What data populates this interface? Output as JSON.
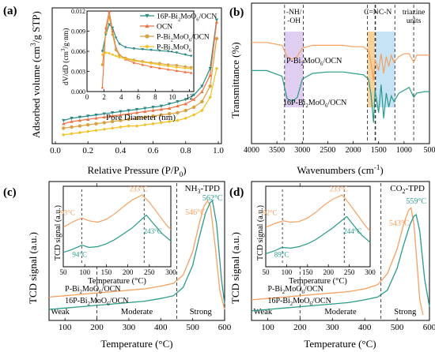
{
  "colors": {
    "series1": "#2a8a82",
    "series2": "#f07040",
    "series3": "#d9a040",
    "series4": "#f2c020",
    "nh_band": "#ddc9f0",
    "cn1_band": "#f5cc90",
    "cn2_band": "#bfe0f4",
    "tpd_orange": "#f5a060",
    "tpd_teal": "#2a9a8a",
    "dash": "#333333"
  },
  "chart_data": [
    {
      "id": "a",
      "type": "line",
      "panel_label": "(a)",
      "xlabel": "Relative Pressure  (P/P",
      "xlabel_sub": "0",
      "xlabel_end": ")",
      "ylabel": "Adsorbed volume (cm",
      "ylabel_sup": "3",
      "ylabel_end": "/g STP)",
      "xlim": [
        0,
        1.0
      ],
      "ylim": [
        0,
        120
      ],
      "xticks": [
        "0.0",
        "0.2",
        "0.4",
        "0.6",
        "0.8",
        "1.0"
      ],
      "series": [
        {
          "name": "16P-Bi2MoO6/OCN",
          "name_parts": [
            "16P-Bi",
            "2",
            "MoO",
            "6",
            "/OCN"
          ],
          "marker": "triangle-down",
          "x": [
            0.05,
            0.1,
            0.15,
            0.2,
            0.25,
            0.3,
            0.35,
            0.4,
            0.45,
            0.5,
            0.55,
            0.6,
            0.65,
            0.7,
            0.75,
            0.8,
            0.85,
            0.9,
            0.95,
            0.99
          ],
          "y": [
            21,
            23,
            24,
            25,
            26,
            27,
            28,
            29,
            30,
            31,
            32,
            33,
            34,
            36,
            38,
            40,
            44,
            52,
            68,
            112
          ]
        },
        {
          "name": "OCN",
          "name_parts": [
            "OCN"
          ],
          "marker": "triangle-up",
          "x": [
            0.05,
            0.1,
            0.15,
            0.2,
            0.25,
            0.3,
            0.35,
            0.4,
            0.45,
            0.5,
            0.55,
            0.6,
            0.65,
            0.7,
            0.75,
            0.8,
            0.85,
            0.9,
            0.95,
            0.99
          ],
          "y": [
            18,
            20,
            21,
            22,
            23,
            24,
            25,
            26,
            27,
            28,
            29,
            30,
            31,
            32,
            34,
            36,
            40,
            47,
            62,
            110
          ]
        },
        {
          "name": "P-Bi2MoO6/OCN",
          "name_parts": [
            "P-Bi",
            "2",
            "MoO",
            "6",
            "/OCN"
          ],
          "marker": "circle",
          "x": [
            0.05,
            0.1,
            0.15,
            0.2,
            0.25,
            0.3,
            0.35,
            0.4,
            0.45,
            0.5,
            0.55,
            0.6,
            0.65,
            0.7,
            0.75,
            0.8,
            0.85,
            0.9,
            0.95,
            0.99
          ],
          "y": [
            14,
            15,
            16,
            17,
            18,
            19,
            20,
            21,
            22,
            23,
            24,
            25,
            26,
            27,
            28,
            30,
            33,
            38,
            52,
            95
          ]
        },
        {
          "name": "P-Bi2MoO6",
          "name_parts": [
            "P-Bi",
            "2",
            "MoO",
            "6"
          ],
          "marker": "diamond",
          "x": [
            0.05,
            0.1,
            0.15,
            0.2,
            0.25,
            0.3,
            0.35,
            0.4,
            0.45,
            0.5,
            0.55,
            0.6,
            0.65,
            0.7,
            0.75,
            0.8,
            0.85,
            0.9,
            0.95,
            0.99
          ],
          "y": [
            8,
            9,
            10,
            11,
            12,
            13,
            14,
            15,
            16,
            16,
            17,
            18,
            19,
            20,
            21,
            23,
            26,
            30,
            42,
            68
          ]
        }
      ],
      "inset": {
        "xlabel": "Pore Diameter (nm)",
        "ylabel": "dV/dD (cm",
        "ylabel_sup": "3",
        "ylabel_end": "/g·nm)",
        "xlim": [
          0,
          12.5
        ],
        "ylim": [
          0,
          0.012
        ],
        "xticks": [
          "0",
          "2",
          "4",
          "6",
          "8",
          "10",
          "12"
        ],
        "yticks": [
          "0.000",
          "0.003",
          "0.006",
          "0.009",
          "0.012"
        ],
        "series": [
          {
            "x": [
              1.8,
              2.2,
              2.6,
              3.0,
              3.4,
              3.8,
              4.5,
              5.5,
              6.5,
              7.5,
              8.5,
              9.5,
              10.5,
              11.5,
              12.2
            ],
            "y": [
              0.006,
              0.0085,
              0.01,
              0.0095,
              0.008,
              0.0071,
              0.0066,
              0.0064,
              0.0063,
              0.0062,
              0.0061,
              0.006,
              0.0058,
              0.0055,
              0.0053
            ]
          },
          {
            "x": [
              1.8,
              2.2,
              2.6,
              3.0,
              3.4,
              3.8,
              4.5,
              5.5,
              6.5,
              7.5,
              8.5,
              9.5,
              10.5,
              11.5,
              12.2
            ],
            "y": [
              0.0006,
              0.0095,
              0.012,
              0.009,
              0.0065,
              0.0055,
              0.0048,
              0.0043,
              0.004,
              0.0037,
              0.0035,
              0.0033,
              0.0031,
              0.0029,
              0.0028
            ]
          },
          {
            "x": [
              1.8,
              2.2,
              2.6,
              3.0,
              3.4,
              3.8,
              4.5,
              5.5,
              6.5,
              7.5,
              8.5,
              9.5,
              10.5,
              11.5,
              12.2
            ],
            "y": [
              0.004,
              0.0088,
              0.0112,
              0.0085,
              0.0062,
              0.0054,
              0.005,
              0.0047,
              0.0045,
              0.0043,
              0.0042,
              0.004,
              0.0039,
              0.0037,
              0.0036
            ]
          },
          {
            "x": [
              1.8,
              2.2,
              2.6,
              3.0,
              3.4,
              3.8,
              4.5,
              5.5,
              6.5,
              7.5,
              8.5,
              9.5,
              10.5,
              11.5,
              12.2
            ],
            "y": [
              0.0055,
              0.0058,
              0.0057,
              0.0055,
              0.0053,
              0.0051,
              0.0049,
              0.0046,
              0.0044,
              0.0042,
              0.004,
              0.0038,
              0.0036,
              0.0035,
              0.0034
            ]
          }
        ]
      }
    },
    {
      "id": "b",
      "type": "line",
      "panel_label": "(b)",
      "xlabel": "Wavenumbers (cm",
      "xlabel_sup": "-1",
      "xlabel_end": ")",
      "ylabel": "Transmittance (%)",
      "xlim": [
        4000,
        500
      ],
      "xticks": [
        "4000",
        "3500",
        "3000",
        "2500",
        "2000",
        "1500",
        "1000",
        "500"
      ],
      "bands": [
        {
          "label_lines": [
            "-NH/",
            "-OH"
          ],
          "from": 3350,
          "to": 2980,
          "color_key": "nh_band"
        },
        {
          "label_lines": [
            "C=N"
          ],
          "from": 1720,
          "to": 1570,
          "color_key": "cn1_band"
        },
        {
          "label_lines": [
            "C-N"
          ],
          "from": 1560,
          "to": 1180,
          "color_key": "cn2_band"
        },
        {
          "label_lines": [
            "triazine",
            "units"
          ],
          "from": 810,
          "to": 810,
          "color_key": "dash"
        }
      ],
      "series": [
        {
          "name": "P-Bi2MoO6/OCN",
          "name_parts": [
            "P-Bi",
            "2",
            "MoO",
            "6",
            "/OCN"
          ],
          "x": [
            4000,
            3700,
            3400,
            3300,
            3200,
            3100,
            3000,
            2800,
            2500,
            2200,
            2000,
            1800,
            1700,
            1650,
            1600,
            1570,
            1500,
            1450,
            1400,
            1350,
            1300,
            1250,
            1200,
            1100,
            1000,
            900,
            810,
            750,
            600,
            500
          ],
          "y": [
            72,
            72,
            70,
            62,
            60,
            62,
            68,
            70,
            70,
            70,
            69,
            69,
            66,
            58,
            45,
            60,
            52,
            64,
            50,
            62,
            55,
            63,
            58,
            62,
            64,
            64,
            58,
            63,
            63,
            63
          ]
        },
        {
          "name": "16P-Bi2MoO6/OCN",
          "name_parts": [
            "16P-Bi",
            "2",
            "MoO",
            "6",
            "/OCN"
          ],
          "x": [
            4000,
            3700,
            3400,
            3300,
            3200,
            3100,
            3000,
            2800,
            2500,
            2200,
            2000,
            1800,
            1700,
            1650,
            1600,
            1570,
            1500,
            1450,
            1400,
            1350,
            1300,
            1250,
            1200,
            1100,
            1000,
            900,
            810,
            750,
            600,
            500
          ],
          "y": [
            52,
            52,
            48,
            32,
            30,
            33,
            46,
            50,
            51,
            51,
            50,
            49,
            46,
            35,
            15,
            38,
            22,
            42,
            18,
            36,
            26,
            34,
            30,
            36,
            38,
            40,
            33,
            36,
            37,
            37
          ]
        }
      ]
    },
    {
      "id": "c",
      "type": "line",
      "panel_label": "(c)",
      "title": "NH",
      "title_sub": "3",
      "title_end": "-TPD",
      "xlabel": "Temperature (°C)",
      "ylabel": "TCD signal (a.u.)",
      "xlim": [
        50,
        600
      ],
      "xticks": [
        "100",
        "200",
        "300",
        "400",
        "500",
        "600"
      ],
      "regions": [
        "Weak",
        "Moderate",
        "Strong"
      ],
      "region_bounds": [
        200,
        450
      ],
      "peak_labels": [
        "546°C",
        "562°C"
      ],
      "series": [
        {
          "name": "P-Bi2MoO6/OCN",
          "name_parts": [
            "P-Bi",
            "2",
            "MoO",
            "6",
            "/OCN"
          ],
          "x": [
            50,
            100,
            150,
            200,
            250,
            300,
            350,
            400,
            440,
            470,
            500,
            520,
            535,
            546,
            555,
            570,
            585,
            600
          ],
          "y": [
            0.17,
            0.18,
            0.19,
            0.2,
            0.21,
            0.22,
            0.23,
            0.25,
            0.27,
            0.33,
            0.5,
            0.7,
            0.83,
            0.87,
            0.84,
            0.55,
            0.22,
            0.08
          ]
        },
        {
          "name": "16P-Bi2MoO6/OCN",
          "name_parts": [
            "16P-Bi",
            "2",
            "MoO",
            "6",
            "/OCN"
          ],
          "x": [
            50,
            100,
            150,
            200,
            250,
            300,
            350,
            400,
            440,
            470,
            500,
            520,
            540,
            555,
            562,
            575,
            590,
            600
          ],
          "y": [
            0.08,
            0.09,
            0.1,
            0.11,
            0.12,
            0.13,
            0.14,
            0.16,
            0.18,
            0.24,
            0.4,
            0.6,
            0.78,
            0.86,
            0.87,
            0.7,
            0.3,
            0.12
          ]
        }
      ],
      "inset": {
        "xlabel": "Temperature (°C)",
        "ylabel": "TCD signal (a.u.)",
        "xlim": [
          50,
          300
        ],
        "xticks": [
          "50",
          "100",
          "150",
          "200",
          "250",
          "300"
        ],
        "peak_labels": [
          "93°C",
          "94°C",
          "233°C",
          "243°C"
        ],
        "peak_positions": [
          93,
          238
        ],
        "series": [
          {
            "x": [
              50,
              70,
              93,
              110,
              130,
              150,
              170,
              190,
              210,
              233,
              250,
              270,
              290,
              300
            ],
            "y": [
              0.55,
              0.62,
              0.68,
              0.64,
              0.62,
              0.66,
              0.74,
              0.84,
              0.93,
              1.0,
              0.9,
              0.74,
              0.58,
              0.52
            ]
          },
          {
            "x": [
              50,
              70,
              94,
              110,
              130,
              150,
              170,
              190,
              210,
              243,
              260,
              280,
              300
            ],
            "y": [
              0.2,
              0.24,
              0.3,
              0.27,
              0.28,
              0.32,
              0.38,
              0.46,
              0.54,
              0.72,
              0.6,
              0.46,
              0.36
            ]
          }
        ]
      }
    },
    {
      "id": "d",
      "type": "line",
      "panel_label": "(d)",
      "title": "CO",
      "title_sub": "2",
      "title_end": "-TPD",
      "xlabel": "Temperature (°C)",
      "ylabel": "TCD signal (a.u.)",
      "xlim": [
        50,
        600
      ],
      "xticks": [
        "100",
        "200",
        "300",
        "400",
        "500",
        "600"
      ],
      "regions": [
        "Weak",
        "Moderate",
        "Strong"
      ],
      "region_bounds": [
        200,
        450
      ],
      "peak_labels": [
        "543°C",
        "559°C"
      ],
      "series": [
        {
          "name": "P-Bi2MoO6/OCN",
          "name_parts": [
            "P-Bi",
            "2",
            "MoO",
            "6",
            "/OCN"
          ],
          "x": [
            50,
            100,
            150,
            200,
            250,
            300,
            350,
            400,
            440,
            470,
            500,
            520,
            535,
            543,
            552,
            562,
            570,
            580
          ],
          "y": [
            0.15,
            0.16,
            0.17,
            0.18,
            0.19,
            0.2,
            0.21,
            0.23,
            0.26,
            0.34,
            0.52,
            0.7,
            0.8,
            0.82,
            0.7,
            0.4,
            0.15,
            0.04
          ]
        },
        {
          "name": "16P-Bi2MoO6/OCN",
          "name_parts": [
            "16P-Bi",
            "2",
            "MoO",
            "6",
            "/OCN"
          ],
          "x": [
            50,
            100,
            150,
            200,
            250,
            300,
            350,
            400,
            440,
            470,
            500,
            520,
            540,
            552,
            559,
            570,
            585,
            600
          ],
          "y": [
            0.07,
            0.08,
            0.09,
            0.1,
            0.11,
            0.12,
            0.13,
            0.15,
            0.17,
            0.22,
            0.38,
            0.55,
            0.7,
            0.76,
            0.77,
            0.65,
            0.3,
            0.1
          ]
        }
      ],
      "inset": {
        "xlabel": "Temperature (°C)",
        "ylabel": "TCD signal (a.u.)",
        "xlim": [
          50,
          300
        ],
        "xticks": [
          "50",
          "100",
          "150",
          "200",
          "250",
          "300"
        ],
        "peak_labels": [
          "92°C",
          "89°C",
          "233°C",
          "244°C"
        ],
        "peak_positions": [
          90,
          238
        ],
        "series": [
          {
            "x": [
              50,
              70,
              92,
              110,
              130,
              150,
              170,
              190,
              210,
              233,
              250,
              270,
              290,
              300
            ],
            "y": [
              0.55,
              0.6,
              0.64,
              0.62,
              0.63,
              0.68,
              0.76,
              0.86,
              0.94,
              1.0,
              0.88,
              0.72,
              0.56,
              0.5
            ]
          },
          {
            "x": [
              50,
              70,
              89,
              110,
              130,
              150,
              170,
              190,
              210,
              244,
              260,
              280,
              300
            ],
            "y": [
              0.18,
              0.22,
              0.27,
              0.26,
              0.28,
              0.32,
              0.38,
              0.46,
              0.54,
              0.7,
              0.58,
              0.44,
              0.34
            ]
          }
        ]
      }
    }
  ]
}
